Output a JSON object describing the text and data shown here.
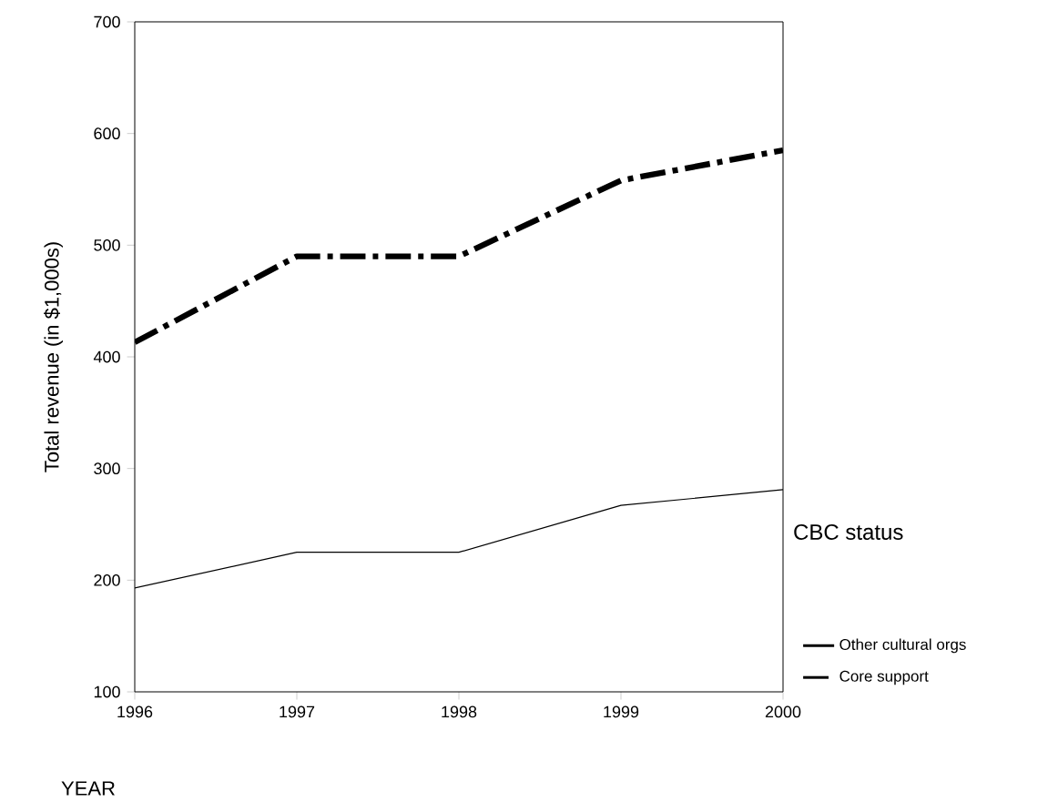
{
  "chart_data": {
    "type": "line",
    "xlabel": "YEAR",
    "ylabel": "Total revenue (in $1,000s)",
    "legend_title": "CBC status",
    "x": [
      1996,
      1997,
      1998,
      1999,
      2000
    ],
    "series": [
      {
        "name": "Other cultural orgs",
        "color": "#000000",
        "line_style": "solid",
        "values": [
          193,
          225,
          225,
          267,
          281
        ]
      },
      {
        "name": "Core support",
        "color": "#000000",
        "line_style": "dashdot",
        "values": [
          413,
          490,
          490,
          558,
          585
        ]
      }
    ],
    "xlim": [
      1996,
      2000
    ],
    "xticks": [
      1996,
      1997,
      1998,
      1999,
      2000
    ],
    "ylim": [
      100,
      700
    ],
    "yticks": [
      100,
      200,
      300,
      400,
      500,
      600,
      700
    ],
    "grid": false,
    "legend": "right",
    "marker": "none"
  }
}
